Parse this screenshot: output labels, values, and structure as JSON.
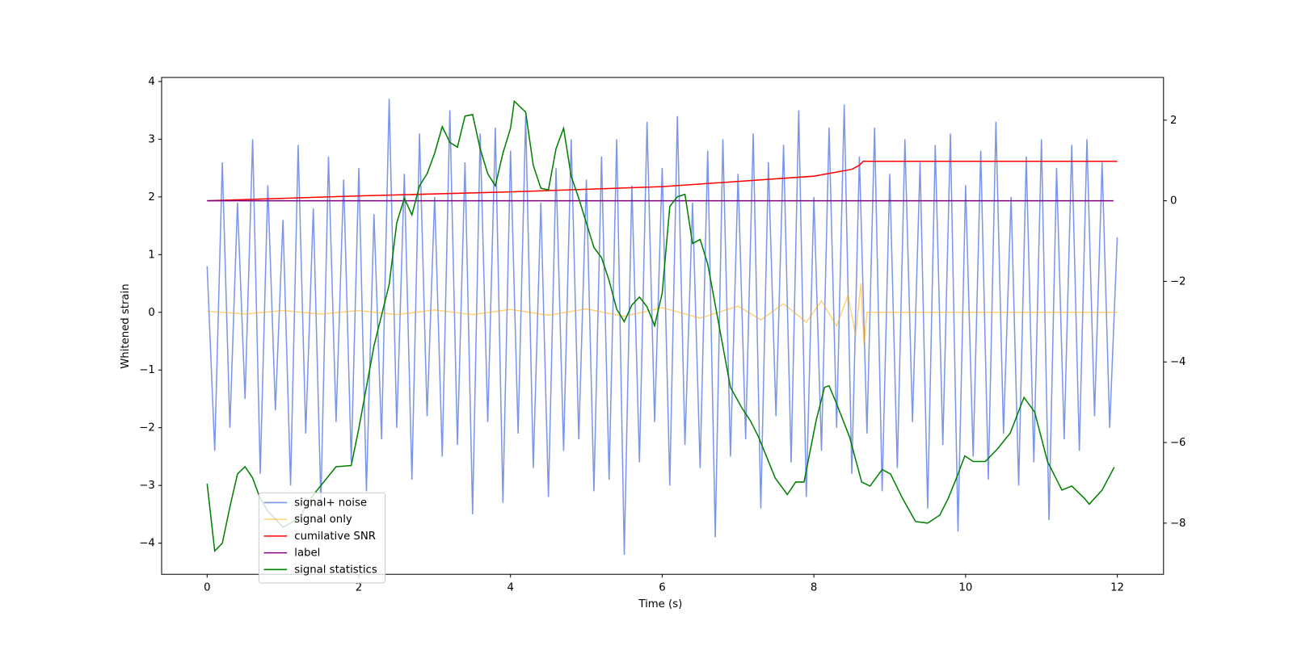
{
  "chart_data": {
    "type": "line",
    "xlabel": "Time (s)",
    "ylabel": "Whitened strain",
    "xlim": [
      -0.6,
      12.61
    ],
    "xticks": [
      0,
      2,
      4,
      6,
      8,
      10,
      12
    ],
    "ylim": [
      -4.54,
      4.07
    ],
    "yticks": [
      {
        "value": -4,
        "label": "−4"
      },
      {
        "value": -3,
        "label": "−3"
      },
      {
        "value": -2,
        "label": "−2"
      },
      {
        "value": -1,
        "label": "−1"
      },
      0,
      1,
      2,
      3,
      4
    ],
    "y2lim": [
      -9.27,
      3.06
    ],
    "y2ticks": [
      {
        "value": -8,
        "label": "−8"
      },
      {
        "value": -6,
        "label": "−6"
      },
      {
        "value": -4,
        "label": "−4"
      },
      {
        "value": -2,
        "label": "−2"
      },
      0,
      2
    ],
    "grid": false,
    "legend": "lower left",
    "series": [
      {
        "name": "signal+ noise",
        "color": "#4169e1",
        "alpha": 0.7,
        "x": [
          0,
          0.1,
          0.2,
          0.3,
          0.4,
          0.5,
          0.6,
          0.7,
          0.8,
          0.9,
          1,
          1.1,
          1.2,
          1.3,
          1.4,
          1.5,
          1.6,
          1.7,
          1.8,
          1.9,
          2,
          2.1,
          2.2,
          2.3,
          2.4,
          2.5,
          2.6,
          2.7,
          2.8,
          2.9,
          3,
          3.1,
          3.2,
          3.3,
          3.4,
          3.5,
          3.6,
          3.7,
          3.8,
          3.9,
          4,
          4.1,
          4.2,
          4.3,
          4.4,
          4.5,
          4.6,
          4.7,
          4.8,
          4.9,
          5,
          5.1,
          5.2,
          5.3,
          5.4,
          5.5,
          5.6,
          5.7,
          5.8,
          5.9,
          6,
          6.1,
          6.2,
          6.3,
          6.4,
          6.5,
          6.6,
          6.7,
          6.8,
          6.9,
          7,
          7.1,
          7.2,
          7.3,
          7.4,
          7.5,
          7.6,
          7.7,
          7.8,
          7.9,
          8,
          8.1,
          8.2,
          8.3,
          8.4,
          8.5,
          8.6,
          8.7,
          8.8,
          8.9,
          9,
          9.1,
          9.2,
          9.3,
          9.4,
          9.5,
          9.6,
          9.7,
          9.8,
          9.9,
          10,
          10.1,
          10.2,
          10.3,
          10.4,
          10.5,
          10.6,
          10.7,
          10.8,
          10.9,
          11,
          11.1,
          11.2,
          11.3,
          11.4,
          11.5,
          11.6,
          11.7,
          11.8,
          11.9,
          12
        ],
        "values": [
          0.8,
          -2.4,
          2.6,
          -2.0,
          1.9,
          -1.5,
          3.0,
          -2.8,
          2.2,
          -1.7,
          1.6,
          -3.0,
          2.9,
          -2.1,
          1.8,
          -3.3,
          2.7,
          -1.9,
          2.3,
          -2.6,
          2.5,
          -3.1,
          1.7,
          -2.2,
          3.7,
          -2.0,
          2.4,
          -2.9,
          3.1,
          -1.8,
          2.0,
          -2.5,
          3.5,
          -2.3,
          2.6,
          -3.5,
          3.1,
          -1.9,
          3.2,
          -3.3,
          2.8,
          -2.1,
          3.4,
          -2.7,
          1.9,
          -3.2,
          2.5,
          -2.4,
          3.0,
          -2.2,
          2.3,
          -3.1,
          2.7,
          -2.9,
          3.0,
          -4.2,
          2.2,
          -2.6,
          3.3,
          -1.9,
          2.5,
          -3.0,
          3.4,
          -2.3,
          1.9,
          -2.7,
          2.8,
          -3.9,
          3.0,
          -2.5,
          2.4,
          -2.2,
          3.1,
          -3.4,
          2.6,
          -1.8,
          2.9,
          -2.6,
          3.5,
          -3.2,
          2.0,
          -2.4,
          3.2,
          -2.0,
          3.6,
          -2.8,
          2.7,
          -2.1,
          3.2,
          -3.1,
          2.4,
          -2.7,
          3.0,
          -1.9,
          2.6,
          -3.4,
          2.9,
          -2.3,
          3.1,
          -3.8,
          2.2,
          -2.5,
          2.8,
          -2.9,
          3.3,
          -2.1,
          2.0,
          -3.0,
          2.7,
          -2.6,
          3.0,
          -3.6,
          2.5,
          -2.2,
          2.9,
          -2.4,
          3.0,
          -1.8,
          2.6,
          -2.0,
          1.3
        ]
      },
      {
        "name": "signal only",
        "color": "#ffa500",
        "alpha": 0.5,
        "x": [
          0,
          0.5,
          1,
          1.5,
          2,
          2.5,
          3,
          3.5,
          4,
          4.5,
          5,
          5.5,
          6,
          6.5,
          7,
          7.3,
          7.6,
          7.9,
          8.1,
          8.3,
          8.45,
          8.55,
          8.62,
          8.66,
          8.7,
          12
        ],
        "values": [
          0.02,
          -0.03,
          0.03,
          -0.03,
          0.03,
          -0.04,
          0.04,
          -0.04,
          0.05,
          -0.05,
          0.06,
          -0.07,
          0.08,
          -0.1,
          0.11,
          -0.13,
          0.15,
          -0.17,
          0.2,
          -0.24,
          0.3,
          -0.4,
          0.5,
          -0.55,
          0,
          0
        ]
      },
      {
        "name": "cumilative SNR",
        "color": "#ff0000",
        "alpha": 1,
        "axis": "y2",
        "x": [
          0,
          2,
          4,
          6,
          8,
          8.5,
          8.6,
          8.65,
          12
        ],
        "values": [
          0,
          0.12,
          0.22,
          0.35,
          0.61,
          0.78,
          0.88,
          0.98,
          0.98
        ]
      },
      {
        "name": "label",
        "color": "#800080",
        "alpha": 1,
        "axis": "y2",
        "x": [
          0,
          11.95
        ],
        "values": [
          0,
          0
        ]
      },
      {
        "name": "signal statistics",
        "color": "#008000",
        "alpha": 1,
        "axis": "y2",
        "x": [
          0,
          0.1,
          0.2,
          0.3,
          0.4,
          0.5,
          0.6,
          0.7,
          0.8,
          1.0,
          1.2,
          1.4,
          1.7,
          1.9,
          2.0,
          2.2,
          2.4,
          2.5,
          2.6,
          2.7,
          2.8,
          2.9,
          3.0,
          3.1,
          3.2,
          3.3,
          3.4,
          3.5,
          3.6,
          3.7,
          3.8,
          3.9,
          4.0,
          4.05,
          4.2,
          4.3,
          4.4,
          4.5,
          4.6,
          4.7,
          4.8,
          4.9,
          5.0,
          5.1,
          5.2,
          5.3,
          5.4,
          5.5,
          5.6,
          5.7,
          5.8,
          5.9,
          6.0,
          6.1,
          6.2,
          6.3,
          6.4,
          6.5,
          6.6,
          6.7,
          6.84,
          6.9,
          7.05,
          7.16,
          7.27,
          7.49,
          7.65,
          7.76,
          7.87,
          8.03,
          8.14,
          8.2,
          8.3,
          8.47,
          8.63,
          8.74,
          8.9,
          9.01,
          9.17,
          9.34,
          9.5,
          9.66,
          9.77,
          9.88,
          9.99,
          10.1,
          10.26,
          10.42,
          10.59,
          10.77,
          10.91,
          11.08,
          11.27,
          11.4,
          11.57,
          11.63,
          11.8,
          11.96
        ],
        "values": [
          -7.02,
          -8.69,
          -8.5,
          -7.6,
          -6.78,
          -6.6,
          -6.88,
          -7.39,
          -7.7,
          -8.1,
          -7.9,
          -7.3,
          -6.6,
          -6.57,
          -5.65,
          -3.6,
          -2.08,
          -0.55,
          0.06,
          -0.35,
          0.37,
          0.67,
          1.18,
          1.84,
          1.45,
          1.33,
          2.1,
          2.14,
          1.29,
          0.67,
          0.37,
          1.18,
          1.8,
          2.47,
          2.2,
          0.88,
          0.31,
          0.27,
          1.29,
          1.8,
          0.61,
          0.06,
          -0.55,
          -1.16,
          -1.41,
          -1.98,
          -2.69,
          -3.0,
          -2.59,
          -2.39,
          -2.63,
          -3.1,
          -2.29,
          -0.14,
          0.1,
          0.16,
          -1.06,
          -0.96,
          -1.57,
          -2.59,
          -4.02,
          -4.63,
          -5.14,
          -5.45,
          -5.86,
          -6.88,
          -7.29,
          -6.98,
          -6.98,
          -5.45,
          -4.63,
          -4.59,
          -5.04,
          -5.86,
          -6.98,
          -7.08,
          -6.67,
          -6.78,
          -7.39,
          -7.96,
          -8.0,
          -7.8,
          -7.39,
          -6.88,
          -6.33,
          -6.47,
          -6.47,
          -6.16,
          -5.76,
          -4.88,
          -5.24,
          -6.47,
          -7.18,
          -7.08,
          -7.39,
          -7.53,
          -7.18,
          -6.61
        ]
      }
    ]
  }
}
